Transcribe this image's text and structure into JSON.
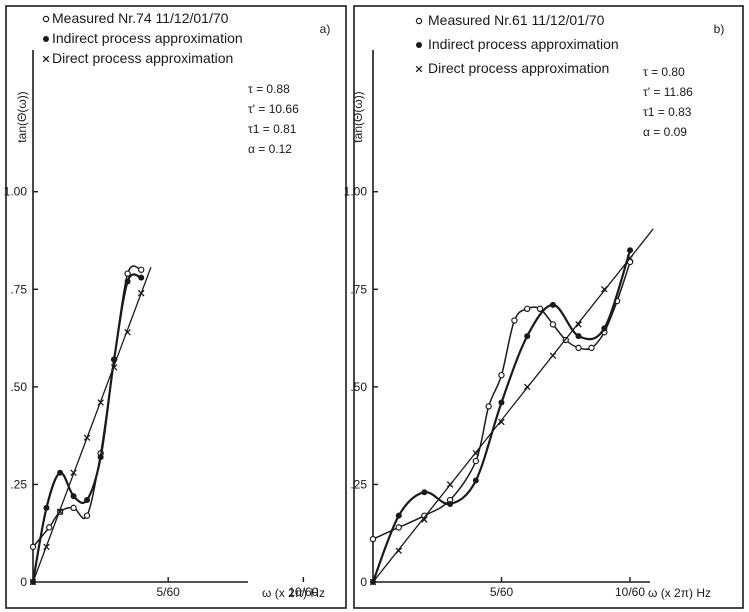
{
  "chart_data": [
    {
      "type": "line",
      "panel_tag": "a)",
      "ylabel": "tan(Θ(ω))",
      "xlabel": "ω (x 2π) Hz",
      "x_ticks": [
        {
          "value": 0.083333,
          "label": "5/60"
        },
        {
          "value": 0.166667,
          "label": "10/60"
        }
      ],
      "y_ticks": [
        {
          "value": 0,
          "label": "0"
        },
        {
          "value": 0.25,
          "label": ".25"
        },
        {
          "value": 0.5,
          "label": ".50"
        },
        {
          "value": 0.75,
          "label": ".75"
        },
        {
          "value": 1.0,
          "label": "1.00"
        }
      ],
      "xlim": [
        0,
        0.188
      ],
      "ylim": [
        0,
        1.44
      ],
      "legend": [
        {
          "marker": "open-circle",
          "text": "Measured  Nr.74 11/12/01/70"
        },
        {
          "marker": "filled-circle",
          "text": "Indirect process approximation"
        },
        {
          "marker": "cross",
          "text": "Direct process approximation"
        }
      ],
      "params": [
        {
          "label": "τ = 0.88"
        },
        {
          "label": "τ' = 10.66"
        },
        {
          "label": "τ1 = 0.81"
        },
        {
          "label": "α = 0.12"
        }
      ],
      "series": [
        {
          "name": "Measured  Nr.74 11/12/01/70",
          "marker": "open-circle",
          "x": [
            0,
            0.01,
            0.0167,
            0.025,
            0.0333,
            0.0417,
            0.05,
            0.0583,
            0.0667
          ],
          "y": [
            0.09,
            0.14,
            0.18,
            0.19,
            0.17,
            0.33,
            0.57,
            0.79,
            0.8
          ]
        },
        {
          "name": "Indirect process approximation",
          "marker": "filled-circle",
          "x": [
            0,
            0.0083,
            0.0167,
            0.025,
            0.0333,
            0.0417,
            0.05,
            0.0583,
            0.0667
          ],
          "y": [
            0.0,
            0.19,
            0.28,
            0.22,
            0.21,
            0.32,
            0.57,
            0.77,
            0.78
          ]
        },
        {
          "name": "Direct process approximation",
          "marker": "cross",
          "x": [
            0,
            0.0083,
            0.0167,
            0.025,
            0.0333,
            0.0417,
            0.05,
            0.0583,
            0.0667
          ],
          "y": [
            0.0,
            0.09,
            0.18,
            0.28,
            0.37,
            0.46,
            0.55,
            0.64,
            0.74
          ]
        }
      ]
    },
    {
      "type": "line",
      "panel_tag": "b)",
      "ylabel": "tan(Θ(ω))",
      "xlabel": "ω (x 2π) Hz",
      "x_ticks": [
        {
          "value": 0.083333,
          "label": "5/60"
        },
        {
          "value": 0.166667,
          "label": "10/60"
        }
      ],
      "y_ticks": [
        {
          "value": 0,
          "label": "0"
        },
        {
          "value": 0.25,
          "label": ".25"
        },
        {
          "value": 0.5,
          "label": ".50"
        },
        {
          "value": 0.75,
          "label": ".75"
        },
        {
          "value": 1.0,
          "label": "1.00"
        }
      ],
      "xlim": [
        0,
        0.238
      ],
      "ylim": [
        0,
        1.44
      ],
      "legend": [
        {
          "marker": "open-circle",
          "text": "Measured  Nr.61 11/12/01/70"
        },
        {
          "marker": "filled-circle",
          "text": "Indirect process approximation"
        },
        {
          "marker": "cross",
          "text": "Direct process approximation"
        }
      ],
      "params": [
        {
          "label": "τ = 0.80"
        },
        {
          "label": "τ' = 11.86"
        },
        {
          "label": "τ1 = 0.83"
        },
        {
          "label": "α = 0.09"
        }
      ],
      "series": [
        {
          "name": "Measured  Nr.61 11/12/01/70",
          "marker": "open-circle",
          "x": [
            0,
            0.0167,
            0.0333,
            0.05,
            0.0667,
            0.075,
            0.0833,
            0.0917,
            0.1,
            0.1083,
            0.1167,
            0.125,
            0.1333,
            0.1417,
            0.15,
            0.1583,
            0.1667
          ],
          "y": [
            0.11,
            0.14,
            0.17,
            0.21,
            0.31,
            0.45,
            0.53,
            0.67,
            0.7,
            0.7,
            0.66,
            0.62,
            0.6,
            0.6,
            0.64,
            0.72,
            0.82
          ]
        },
        {
          "name": "Indirect process approximation",
          "marker": "filled-circle",
          "x": [
            0,
            0.0167,
            0.0333,
            0.05,
            0.0667,
            0.0833,
            0.1,
            0.1167,
            0.1333,
            0.15,
            0.1667
          ],
          "y": [
            0.0,
            0.17,
            0.23,
            0.2,
            0.26,
            0.46,
            0.63,
            0.71,
            0.63,
            0.65,
            0.85
          ]
        },
        {
          "name": "Direct process approximation",
          "marker": "cross",
          "x": [
            0,
            0.0167,
            0.0333,
            0.05,
            0.0667,
            0.0833,
            0.1,
            0.1167,
            0.1333,
            0.15,
            0.1667
          ],
          "y": [
            0.0,
            0.08,
            0.16,
            0.25,
            0.33,
            0.41,
            0.5,
            0.58,
            0.66,
            0.75,
            0.83
          ]
        }
      ]
    }
  ]
}
